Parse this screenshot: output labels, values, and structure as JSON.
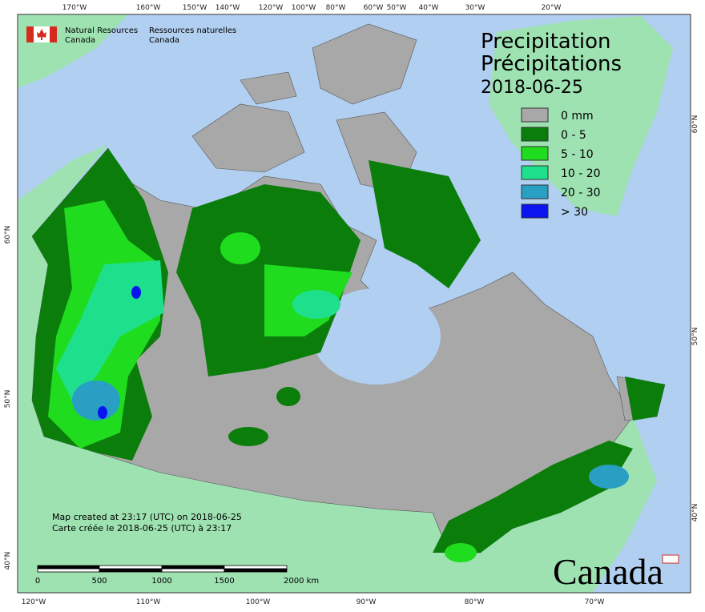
{
  "header": {
    "agency_en": [
      "Natural Resources",
      "Canada"
    ],
    "agency_fr": [
      "Ressources naturelles",
      "Canada"
    ]
  },
  "title": {
    "en": "Precipitation",
    "fr": "Précipitations",
    "date": "2018-06-25"
  },
  "legend": [
    {
      "label": "0 mm",
      "color": "#a8a8a8"
    },
    {
      "label": "0 - 5",
      "color": "#0b7d0b"
    },
    {
      "label": "5 - 10",
      "color": "#1fdc1f"
    },
    {
      "label": "10 - 20",
      "color": "#1ee08c"
    },
    {
      "label": "20 - 30",
      "color": "#2a9fc4"
    },
    {
      "label": "> 30",
      "color": "#0a14ee"
    }
  ],
  "graticule": {
    "top": [
      "170°W",
      "160°W",
      "150°W",
      "140°W",
      "120°W",
      "100°W",
      "80°W",
      "60°W",
      "50°W",
      "40°W",
      "30°W",
      "20°W"
    ],
    "bottom": [
      "120°W",
      "110°W",
      "100°W",
      "90°W",
      "80°W",
      "70°W"
    ],
    "left": [
      "60°N",
      "50°N",
      "40°N"
    ],
    "right": [
      "60°N",
      "50°N",
      "40°N"
    ]
  },
  "credits": [
    "Map created at 23:17 (UTC) on 2018-06-25",
    "Carte créée le 2018-06-25 (UTC) à 23:17"
  ],
  "scale_bar": [
    "0",
    "500",
    "1000",
    "1500",
    "2000 km"
  ],
  "wordmark": "Canada"
}
